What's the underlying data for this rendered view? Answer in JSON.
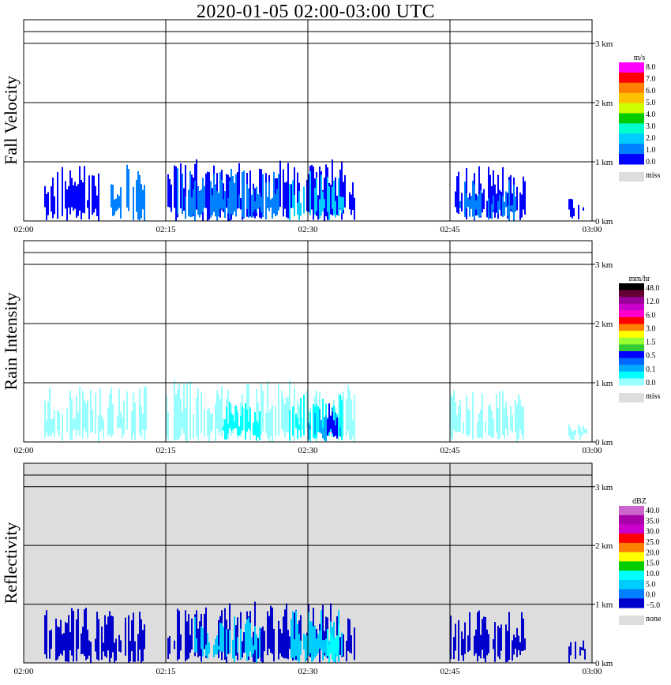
{
  "title": "2020-01-05   02:00-03:00 UTC",
  "chart_data": [
    {
      "type": "heatmap",
      "ylabel": "Fall Velocity",
      "x_ticks": [
        "02:00",
        "02:15",
        "02:30",
        "02:45",
        "03:00"
      ],
      "y_ticks": [
        "0 km",
        "1 km",
        "2 km",
        "3 km"
      ],
      "ylim": [
        0,
        3.4
      ],
      "background": "#ffffff",
      "colorbar": {
        "unit": "m/s",
        "labels": [
          "8.0",
          "7.0",
          "6.0",
          "5.0",
          "4.0",
          "3.0",
          "2.0",
          "1.0",
          "0.0"
        ],
        "colors": [
          "#ff00ff",
          "#ff0000",
          "#ff8000",
          "#ffc000",
          "#ccff00",
          "#00cc00",
          "#00ffcc",
          "#00ccff",
          "#0080ff",
          "#0000ff"
        ],
        "missing_label": "miss",
        "missing_color": "#dddddd"
      },
      "echo_regions": [
        {
          "t0": 2,
          "t1": 8,
          "top": 0.95,
          "color": "#0000ff"
        },
        {
          "t0": 9,
          "t1": 13,
          "top": 0.98,
          "color": "#0080ff"
        },
        {
          "t0": 15,
          "t1": 28,
          "top": 1.05,
          "color": "#0000ff"
        },
        {
          "t0": 16,
          "t1": 27,
          "top": 0.9,
          "color": "#0080ff"
        },
        {
          "t0": 27.5,
          "t1": 35,
          "top": 1.05,
          "color": "#0000ff"
        },
        {
          "t0": 28,
          "t1": 34,
          "top": 0.85,
          "color": "#00ccff"
        },
        {
          "t0": 45,
          "t1": 53,
          "top": 0.95,
          "color": "#0000ff"
        },
        {
          "t0": 46,
          "t1": 52,
          "top": 0.7,
          "color": "#0080ff"
        },
        {
          "t0": 57.5,
          "t1": 59.5,
          "top": 0.4,
          "color": "#0000ff"
        }
      ]
    },
    {
      "type": "heatmap",
      "ylabel": "Rain Intensity",
      "x_ticks": [
        "02:00",
        "02:15",
        "02:30",
        "02:45",
        "03:00"
      ],
      "y_ticks": [
        "0 km",
        "1 km",
        "2 km",
        "3 km"
      ],
      "ylim": [
        0,
        3.4
      ],
      "background": "#ffffff",
      "colorbar": {
        "unit": "mm/hr",
        "labels": [
          "48.0",
          "12.0",
          "6.0",
          "3.0",
          "1.5",
          "0.5",
          "0.1",
          "0.0"
        ],
        "colors": [
          "#000000",
          "#660033",
          "#990099",
          "#cc00cc",
          "#ff00cc",
          "#ff0000",
          "#ff8000",
          "#ffff00",
          "#99ff33",
          "#33cc33",
          "#0000ff",
          "#0066ff",
          "#00aaff",
          "#00ffff",
          "#99ffff"
        ],
        "missing_label": "miss",
        "missing_color": "#dddddd"
      },
      "echo_regions": [
        {
          "t0": 2,
          "t1": 13,
          "top": 0.95,
          "color": "#99ffff"
        },
        {
          "t0": 15,
          "t1": 28,
          "top": 1.05,
          "color": "#99ffff"
        },
        {
          "t0": 21,
          "t1": 25,
          "top": 0.7,
          "color": "#00ffff"
        },
        {
          "t0": 27.5,
          "t1": 35,
          "top": 1.05,
          "color": "#99ffff"
        },
        {
          "t0": 28,
          "t1": 34,
          "top": 0.8,
          "color": "#00ffff"
        },
        {
          "t0": 30,
          "t1": 33.5,
          "top": 0.6,
          "color": "#00aaff"
        },
        {
          "t0": 32,
          "t1": 33,
          "top": 0.7,
          "color": "#0000ff"
        },
        {
          "t0": 45,
          "t1": 53,
          "top": 0.9,
          "color": "#99ffff"
        },
        {
          "t0": 57.5,
          "t1": 59.5,
          "top": 0.4,
          "color": "#99ffff"
        }
      ]
    },
    {
      "type": "heatmap",
      "ylabel": "Reflectivity",
      "x_ticks": [
        "02:00",
        "02:15",
        "02:30",
        "02:45",
        "03:00"
      ],
      "y_ticks": [
        "0 km",
        "1 km",
        "2 km",
        "3 km"
      ],
      "ylim": [
        0,
        3.4
      ],
      "background": "#dddddd",
      "colorbar": {
        "unit": "dBZ",
        "labels": [
          "40.0",
          "35.0",
          "30.0",
          "25.0",
          "20.0",
          "15.0",
          "10.0",
          "5.0",
          "0.0",
          "−5.0"
        ],
        "colors": [
          "#cc66cc",
          "#aa00aa",
          "#cc00cc",
          "#ff0000",
          "#ff8000",
          "#ffff00",
          "#00cc00",
          "#00ffff",
          "#00ccff",
          "#0080ff",
          "#0000cc"
        ],
        "missing_label": "none",
        "missing_color": "#dddddd"
      },
      "echo_regions": [
        {
          "t0": 2,
          "t1": 13,
          "top": 0.95,
          "color": "#0000cc"
        },
        {
          "t0": 15,
          "t1": 28,
          "top": 1.05,
          "color": "#0000cc"
        },
        {
          "t0": 18,
          "t1": 25,
          "top": 0.8,
          "color": "#00ccff"
        },
        {
          "t0": 27.5,
          "t1": 35,
          "top": 1.05,
          "color": "#0000cc"
        },
        {
          "t0": 28,
          "t1": 34,
          "top": 0.9,
          "color": "#00ccff"
        },
        {
          "t0": 32,
          "t1": 33.5,
          "top": 0.75,
          "color": "#00ffff"
        },
        {
          "t0": 45,
          "t1": 53,
          "top": 0.9,
          "color": "#0000cc"
        },
        {
          "t0": 57.5,
          "t1": 59.5,
          "top": 0.4,
          "color": "#0000cc"
        }
      ]
    }
  ]
}
